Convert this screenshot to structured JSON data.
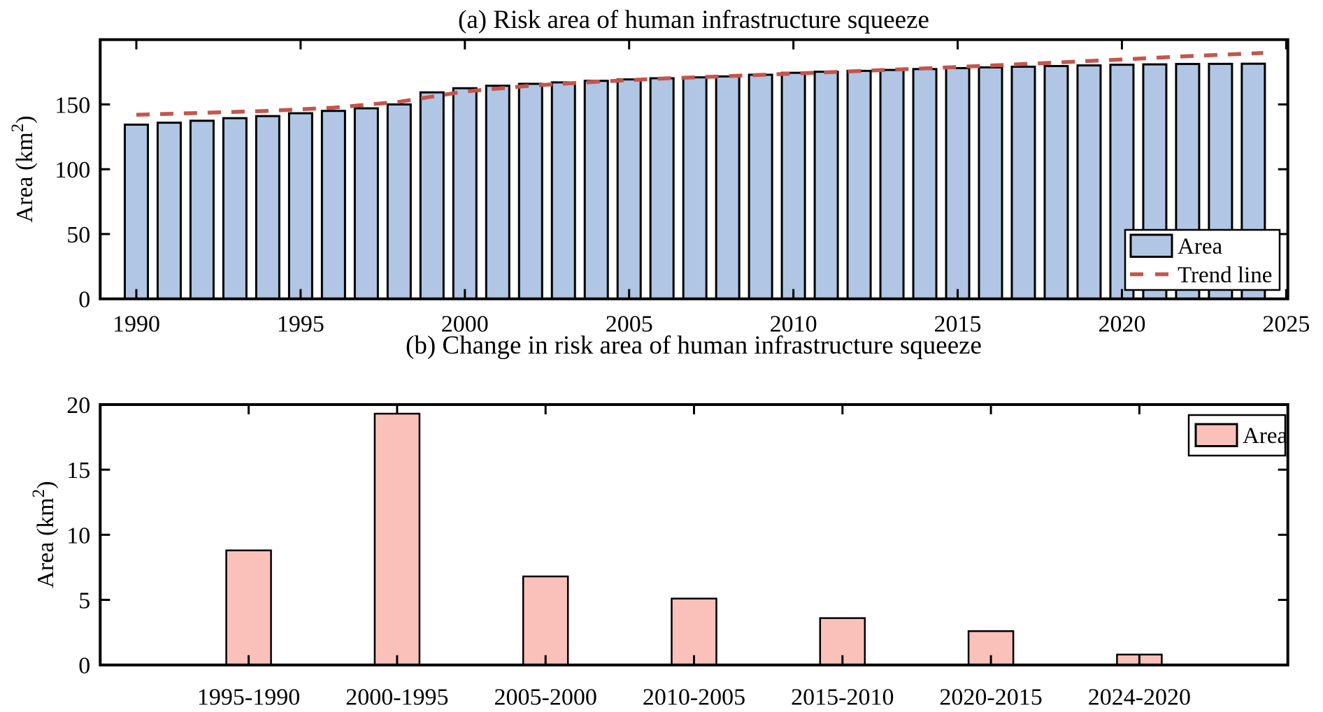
{
  "figure": {
    "background": "#ffffff"
  },
  "chart_data": [
    {
      "type": "bar",
      "panel": "a",
      "title": "(a) Risk area of human infrastructure squeeze",
      "ylabel_parts": [
        "Area (km",
        "2",
        ")"
      ],
      "x": [
        1990,
        1991,
        1992,
        1993,
        1994,
        1995,
        1996,
        1997,
        1998,
        1999,
        2000,
        2001,
        2002,
        2003,
        2004,
        2005,
        2006,
        2007,
        2008,
        2009,
        2010,
        2011,
        2012,
        2013,
        2014,
        2015,
        2016,
        2017,
        2018,
        2019,
        2020,
        2021,
        2022,
        2023,
        2024
      ],
      "series": [
        {
          "name": "Area",
          "kind": "bar",
          "values": [
            134.4,
            135.9,
            137.4,
            139.4,
            141.0,
            143.2,
            145.0,
            147.0,
            150.0,
            159.3,
            162.5,
            164.4,
            165.9,
            167.0,
            168.2,
            169.3,
            170.2,
            170.9,
            171.6,
            172.9,
            174.4,
            175.2,
            175.9,
            176.6,
            177.3,
            178.0,
            178.6,
            179.1,
            179.6,
            180.1,
            180.6,
            180.9,
            181.2,
            181.3,
            181.4
          ]
        },
        {
          "name": "Trend line",
          "kind": "dashed-line",
          "points": [
            [
              1990,
              142.0
            ],
            [
              1994,
              145.0
            ],
            [
              1996,
              147.5
            ],
            [
              1998,
              152.0
            ],
            [
              2000,
              160.0
            ],
            [
              2002,
              164.5
            ],
            [
              2004,
              167.5
            ],
            [
              2006,
              170.0
            ],
            [
              2008,
              171.8
            ],
            [
              2010,
              173.8
            ],
            [
              2012,
              175.8
            ],
            [
              2014,
              177.8
            ],
            [
              2016,
              180.0
            ],
            [
              2018,
              182.3
            ],
            [
              2020,
              184.7
            ],
            [
              2022,
              187.2
            ],
            [
              2024.3,
              189.7
            ]
          ]
        }
      ],
      "xlim": [
        1988.9,
        2025.05
      ],
      "ylim": [
        0,
        200
      ],
      "xticks": [
        1990,
        1995,
        2000,
        2005,
        2010,
        2015,
        2020,
        2025
      ],
      "xticklabels": [
        "1990",
        "1995",
        "2000",
        "2005",
        "2010",
        "2015",
        "2020",
        "2025"
      ],
      "yticks": [
        0,
        50,
        100,
        150
      ],
      "yticklabels": [
        "0",
        "50",
        "100",
        "150"
      ],
      "legend": [
        {
          "label": "Area",
          "swatch": "bar"
        },
        {
          "label": "Trend line",
          "swatch": "dashed-line"
        }
      ],
      "legend_position": "lower right",
      "grid": false,
      "colors": {
        "bar_fill": "#b0c6e4",
        "bar_edge": "#000000",
        "trend": "#c4554d"
      }
    },
    {
      "type": "bar",
      "panel": "b",
      "title": "(b) Change in risk area of human infrastructure squeeze",
      "ylabel_parts": [
        "Area (km",
        "2",
        ")"
      ],
      "categories": [
        "1995-1990",
        "2000-1995",
        "2005-2000",
        "2010-2005",
        "2015-2010",
        "2020-2015",
        "2024-2020"
      ],
      "values": [
        8.8,
        19.3,
        6.8,
        5.1,
        3.6,
        2.6,
        0.8
      ],
      "xlim": [
        0,
        8
      ],
      "ylim": [
        0,
        20
      ],
      "yticks": [
        0,
        5,
        10,
        15,
        20
      ],
      "yticklabels": [
        "0",
        "5",
        "10",
        "15",
        "20"
      ],
      "legend": [
        {
          "label": "Area",
          "swatch": "bar"
        }
      ],
      "legend_position": "upper right",
      "grid": false,
      "colors": {
        "bar_fill": "#fac1bb",
        "bar_edge": "#000000"
      }
    }
  ]
}
